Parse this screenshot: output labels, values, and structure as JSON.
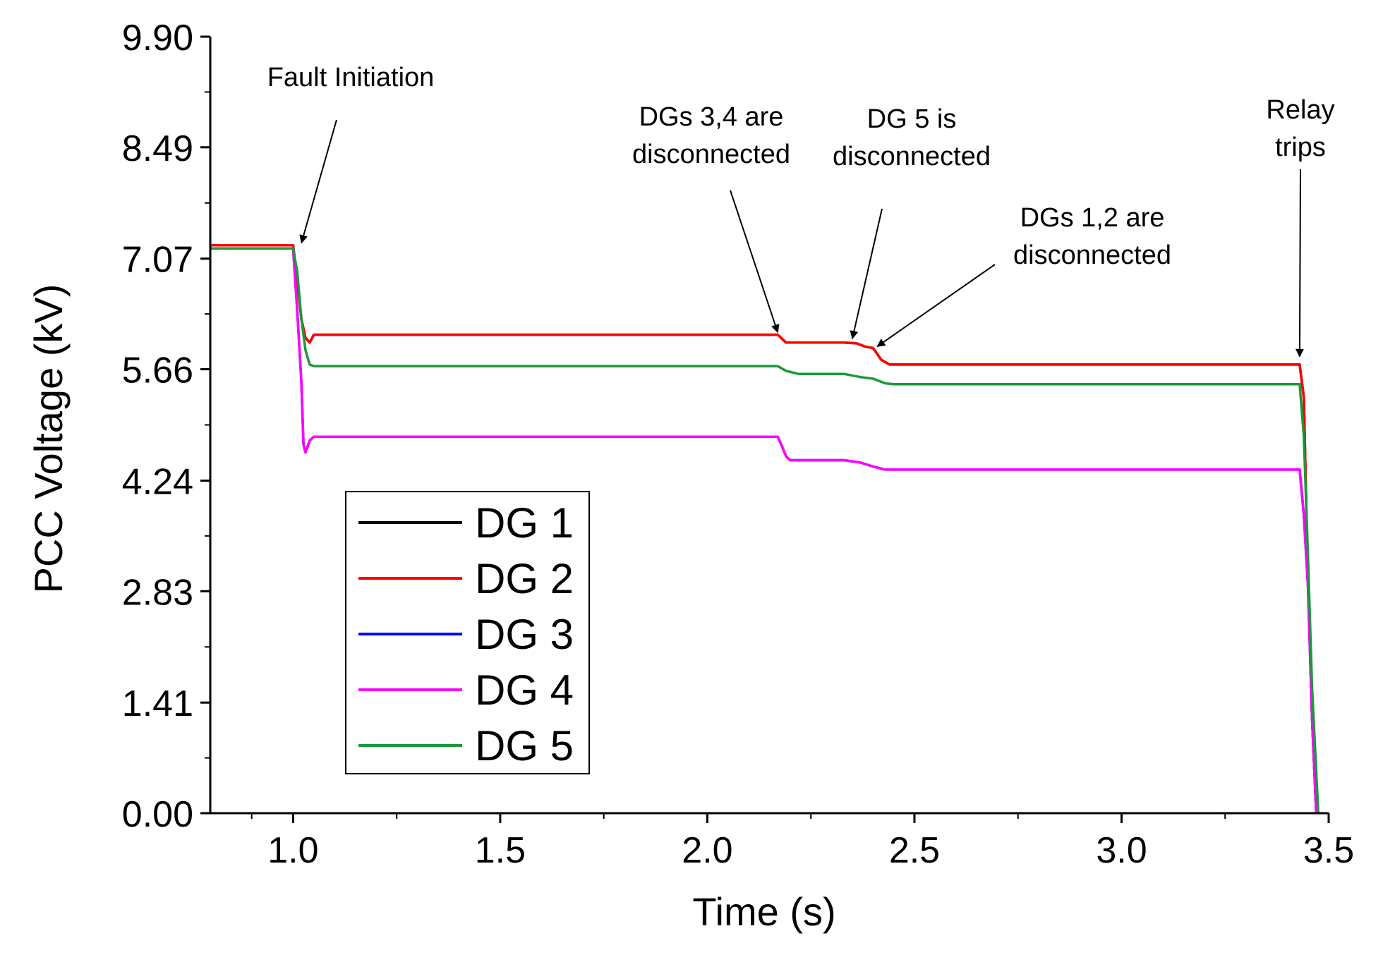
{
  "chart_data": {
    "type": "line",
    "title": "",
    "xlabel": "Time (s)",
    "ylabel": "PCC Voltage (kV)",
    "xlim": [
      0.8,
      3.5
    ],
    "ylim": [
      0.0,
      9.9
    ],
    "x_ticks": [
      1.0,
      1.5,
      2.0,
      2.5,
      3.0,
      3.5
    ],
    "x_tick_labels": [
      "1.0",
      "1.5",
      "2.0",
      "2.5",
      "3.0",
      "3.5"
    ],
    "y_ticks": [
      0.0,
      1.41,
      2.83,
      4.24,
      5.66,
      7.07,
      8.49,
      9.9
    ],
    "y_tick_labels": [
      "0.00",
      "1.41",
      "2.83",
      "4.24",
      "5.66",
      "7.07",
      "8.49",
      "9.90"
    ],
    "grid": false,
    "legend_position": "bottom-left",
    "series": [
      {
        "name": "DG 1",
        "color": "#000000",
        "points": [
          [
            0.8,
            7.24
          ],
          [
            1.0,
            7.24
          ],
          [
            1.01,
            6.8
          ],
          [
            1.02,
            6.3
          ],
          [
            1.03,
            6.06
          ],
          [
            1.04,
            6.0
          ],
          [
            1.05,
            6.1
          ],
          [
            1.1,
            6.1
          ],
          [
            2.17,
            6.1
          ],
          [
            2.19,
            6.0
          ],
          [
            2.33,
            6.0
          ],
          [
            2.36,
            5.99
          ],
          [
            2.38,
            5.95
          ],
          [
            2.4,
            5.93
          ],
          [
            2.42,
            5.78
          ],
          [
            2.44,
            5.72
          ],
          [
            3.43,
            5.72
          ],
          [
            3.44,
            5.3
          ],
          [
            3.45,
            3.0
          ],
          [
            3.46,
            1.2
          ],
          [
            3.47,
            0.0
          ]
        ]
      },
      {
        "name": "DG 2",
        "color": "#ff0000",
        "points": [
          [
            0.8,
            7.24
          ],
          [
            1.0,
            7.24
          ],
          [
            1.01,
            6.8
          ],
          [
            1.02,
            6.3
          ],
          [
            1.03,
            6.06
          ],
          [
            1.04,
            6.0
          ],
          [
            1.05,
            6.1
          ],
          [
            1.1,
            6.1
          ],
          [
            2.17,
            6.1
          ],
          [
            2.19,
            6.0
          ],
          [
            2.33,
            6.0
          ],
          [
            2.36,
            5.99
          ],
          [
            2.38,
            5.95
          ],
          [
            2.4,
            5.93
          ],
          [
            2.42,
            5.78
          ],
          [
            2.44,
            5.72
          ],
          [
            3.43,
            5.72
          ],
          [
            3.44,
            5.3
          ],
          [
            3.45,
            3.0
          ],
          [
            3.46,
            1.2
          ],
          [
            3.47,
            0.0
          ]
        ]
      },
      {
        "name": "DG 3",
        "color": "#0000ff",
        "points": [
          [
            0.8,
            7.2
          ],
          [
            1.0,
            7.2
          ],
          [
            1.01,
            6.4
          ],
          [
            1.02,
            5.5
          ],
          [
            1.025,
            4.7
          ],
          [
            1.03,
            4.6
          ],
          [
            1.04,
            4.75
          ],
          [
            1.05,
            4.8
          ],
          [
            1.1,
            4.8
          ],
          [
            2.17,
            4.8
          ],
          [
            2.18,
            4.68
          ],
          [
            2.19,
            4.55
          ],
          [
            2.2,
            4.5
          ],
          [
            2.33,
            4.5
          ],
          [
            2.37,
            4.47
          ],
          [
            2.4,
            4.42
          ],
          [
            2.43,
            4.38
          ],
          [
            3.43,
            4.38
          ],
          [
            3.44,
            3.8
          ],
          [
            3.45,
            2.9
          ],
          [
            3.46,
            1.2
          ],
          [
            3.47,
            0.0
          ]
        ]
      },
      {
        "name": "DG 4",
        "color": "#ff00ff",
        "points": [
          [
            0.8,
            7.2
          ],
          [
            1.0,
            7.2
          ],
          [
            1.01,
            6.4
          ],
          [
            1.02,
            5.5
          ],
          [
            1.025,
            4.7
          ],
          [
            1.03,
            4.6
          ],
          [
            1.04,
            4.75
          ],
          [
            1.05,
            4.8
          ],
          [
            1.1,
            4.8
          ],
          [
            2.17,
            4.8
          ],
          [
            2.18,
            4.68
          ],
          [
            2.19,
            4.55
          ],
          [
            2.2,
            4.5
          ],
          [
            2.33,
            4.5
          ],
          [
            2.37,
            4.47
          ],
          [
            2.4,
            4.42
          ],
          [
            2.43,
            4.38
          ],
          [
            3.43,
            4.38
          ],
          [
            3.44,
            3.8
          ],
          [
            3.45,
            2.9
          ],
          [
            3.46,
            1.2
          ],
          [
            3.47,
            0.0
          ]
        ]
      },
      {
        "name": "DG 5",
        "color": "#1a9a3a",
        "points": [
          [
            0.8,
            7.2
          ],
          [
            1.0,
            7.2
          ],
          [
            1.01,
            6.9
          ],
          [
            1.02,
            6.3
          ],
          [
            1.03,
            5.9
          ],
          [
            1.04,
            5.72
          ],
          [
            1.05,
            5.7
          ],
          [
            1.1,
            5.7
          ],
          [
            2.17,
            5.7
          ],
          [
            2.19,
            5.64
          ],
          [
            2.22,
            5.6
          ],
          [
            2.33,
            5.6
          ],
          [
            2.37,
            5.56
          ],
          [
            2.4,
            5.54
          ],
          [
            2.43,
            5.48
          ],
          [
            2.45,
            5.47
          ],
          [
            3.43,
            5.47
          ],
          [
            3.44,
            4.8
          ],
          [
            3.45,
            3.3
          ],
          [
            3.46,
            1.6
          ],
          [
            3.475,
            0.0
          ]
        ]
      }
    ],
    "annotations": [
      {
        "lines": [
          "Fault Initiation"
        ],
        "arrow_to": [
          1.02,
          7.27
        ]
      },
      {
        "lines": [
          "DGs 3,4 are",
          "disconnected"
        ],
        "arrow_to": [
          2.17,
          6.13
        ]
      },
      {
        "lines": [
          "DG 5 is",
          "disconnected"
        ],
        "arrow_to": [
          2.35,
          6.05
        ]
      },
      {
        "lines": [
          "DGs 1,2 are",
          "disconnected"
        ],
        "arrow_to": [
          2.41,
          5.95
        ]
      },
      {
        "lines": [
          "Relay",
          "trips"
        ],
        "arrow_to": [
          3.43,
          5.82
        ]
      }
    ]
  }
}
